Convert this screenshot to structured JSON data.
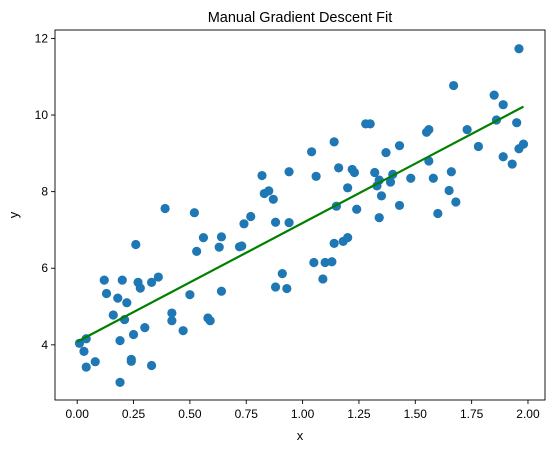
{
  "chart_data": {
    "type": "scatter",
    "title": "Manual Gradient Descent Fit",
    "xlabel": "x",
    "ylabel": "y",
    "xlim": [
      -0.0985,
      2.0755
    ],
    "ylim": [
      2.56,
      12.22
    ],
    "xticks": [
      0.0,
      0.25,
      0.5,
      0.75,
      1.0,
      1.25,
      1.5,
      1.75,
      2.0
    ],
    "xtick_labels": [
      "0.00",
      "0.25",
      "0.50",
      "0.75",
      "1.00",
      "1.25",
      "1.50",
      "1.75",
      "2.00"
    ],
    "yticks": [
      4,
      6,
      8,
      10,
      12
    ],
    "ytick_labels": [
      "4",
      "6",
      "8",
      "10",
      "12"
    ],
    "grid": false,
    "legend": "none",
    "colors": {
      "points": "#1f77b4",
      "line": "#008000"
    },
    "series": [
      {
        "type": "scatter",
        "points": [
          [
            0.01,
            4.04
          ],
          [
            0.03,
            3.83
          ],
          [
            0.04,
            4.16
          ],
          [
            0.04,
            3.42
          ],
          [
            0.08,
            3.56
          ],
          [
            0.12,
            5.69
          ],
          [
            0.13,
            5.34
          ],
          [
            0.16,
            4.78
          ],
          [
            0.18,
            5.22
          ],
          [
            0.19,
            3.02
          ],
          [
            0.19,
            4.11
          ],
          [
            0.2,
            5.69
          ],
          [
            0.21,
            4.66
          ],
          [
            0.22,
            5.1
          ],
          [
            0.24,
            3.57
          ],
          [
            0.24,
            3.62
          ],
          [
            0.25,
            4.27
          ],
          [
            0.26,
            6.62
          ],
          [
            0.27,
            5.63
          ],
          [
            0.28,
            5.48
          ],
          [
            0.3,
            4.45
          ],
          [
            0.33,
            3.46
          ],
          [
            0.33,
            5.63
          ],
          [
            0.36,
            5.77
          ],
          [
            0.39,
            7.56
          ],
          [
            0.42,
            4.83
          ],
          [
            0.42,
            4.63
          ],
          [
            0.47,
            4.37
          ],
          [
            0.5,
            5.31
          ],
          [
            0.52,
            7.45
          ],
          [
            0.53,
            6.44
          ],
          [
            0.56,
            6.8
          ],
          [
            0.58,
            4.7
          ],
          [
            0.59,
            4.63
          ],
          [
            0.63,
            6.55
          ],
          [
            0.64,
            6.82
          ],
          [
            0.64,
            5.4
          ],
          [
            0.72,
            6.56
          ],
          [
            0.73,
            6.58
          ],
          [
            0.74,
            7.16
          ],
          [
            0.77,
            7.35
          ],
          [
            0.82,
            8.42
          ],
          [
            0.83,
            7.95
          ],
          [
            0.85,
            8.02
          ],
          [
            0.87,
            7.8
          ],
          [
            0.88,
            5.51
          ],
          [
            0.88,
            7.2
          ],
          [
            0.91,
            5.86
          ],
          [
            0.93,
            5.47
          ],
          [
            0.94,
            7.19
          ],
          [
            0.94,
            8.52
          ],
          [
            1.04,
            9.04
          ],
          [
            1.05,
            6.15
          ],
          [
            1.06,
            8.4
          ],
          [
            1.09,
            5.72
          ],
          [
            1.1,
            6.15
          ],
          [
            1.13,
            6.17
          ],
          [
            1.14,
            9.3
          ],
          [
            1.14,
            6.65
          ],
          [
            1.15,
            7.62
          ],
          [
            1.16,
            8.62
          ],
          [
            1.18,
            6.7
          ],
          [
            1.2,
            6.8
          ],
          [
            1.2,
            8.1
          ],
          [
            1.22,
            8.58
          ],
          [
            1.23,
            8.5
          ],
          [
            1.24,
            7.54
          ],
          [
            1.28,
            9.77
          ],
          [
            1.3,
            9.77
          ],
          [
            1.32,
            8.5
          ],
          [
            1.33,
            8.15
          ],
          [
            1.34,
            7.32
          ],
          [
            1.34,
            8.3
          ],
          [
            1.35,
            7.89
          ],
          [
            1.37,
            9.02
          ],
          [
            1.39,
            8.25
          ],
          [
            1.4,
            8.45
          ],
          [
            1.43,
            7.64
          ],
          [
            1.43,
            9.2
          ],
          [
            1.48,
            8.35
          ],
          [
            1.55,
            9.55
          ],
          [
            1.56,
            9.62
          ],
          [
            1.56,
            8.8
          ],
          [
            1.58,
            8.35
          ],
          [
            1.6,
            7.43
          ],
          [
            1.65,
            8.03
          ],
          [
            1.66,
            8.52
          ],
          [
            1.67,
            10.77
          ],
          [
            1.68,
            7.73
          ],
          [
            1.73,
            9.62
          ],
          [
            1.78,
            9.18
          ],
          [
            1.85,
            10.52
          ],
          [
            1.86,
            9.87
          ],
          [
            1.89,
            10.27
          ],
          [
            1.89,
            8.91
          ],
          [
            1.93,
            8.72
          ],
          [
            1.95,
            9.8
          ],
          [
            1.96,
            11.73
          ],
          [
            1.96,
            9.12
          ],
          [
            1.98,
            9.24
          ]
        ]
      },
      {
        "type": "line",
        "x": [
          0.0,
          1.98
        ],
        "y": [
          4.08,
          10.22
        ]
      }
    ]
  }
}
